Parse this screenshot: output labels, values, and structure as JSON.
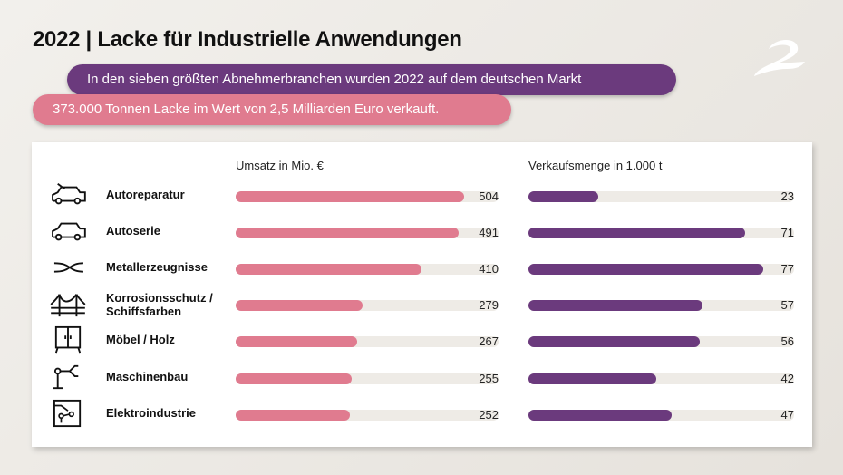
{
  "title": "2022 | Lacke für Industrielle Anwendungen",
  "intro": {
    "line1": "In den sieben größten Abnehmerbranchen wurden 2022 auf dem deutschen Markt",
    "line2": "373.000 Tonnen Lacke im Wert von 2,5 Milliarden Euro verkauft."
  },
  "colors": {
    "revenue": "#e07b8f",
    "volume": "#6b3a7d",
    "track": "#eeebe6"
  },
  "chart_data": {
    "type": "bar",
    "categories": [
      "Autoreparatur",
      "Autoserie",
      "Metallerzeugnisse",
      "Korrosionsschutz / Schiffsfarben",
      "Möbel / Holz",
      "Maschinenbau",
      "Elektroindustrie"
    ],
    "icons": [
      "car-repair-icon",
      "car-icon",
      "metal-tongs-icon",
      "bridge-icon",
      "cabinet-icon",
      "robot-arm-icon",
      "circuit-board-icon"
    ],
    "series": [
      {
        "name": "Umsatz in Mio. €",
        "values": [
          504,
          491,
          410,
          279,
          267,
          255,
          252
        ]
      },
      {
        "name": "Verkaufsmenge in 1.000 t",
        "values": [
          23,
          71,
          77,
          57,
          56,
          42,
          47
        ]
      }
    ]
  }
}
